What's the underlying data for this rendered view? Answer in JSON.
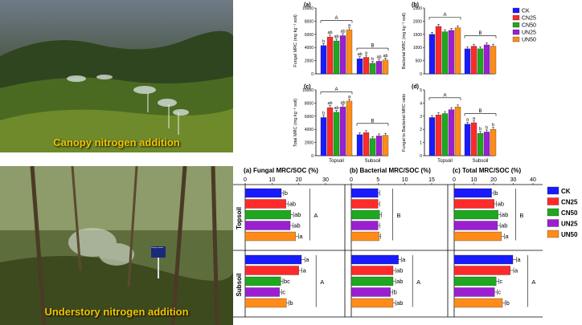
{
  "photos": {
    "top_caption": "Canopy nitrogen addition",
    "bottom_caption": "Understory nitrogen addition",
    "sign_text": "Nitrogen addition"
  },
  "legend_top": [
    "CK",
    "CN25",
    "CN50",
    "UN25",
    "UN50"
  ],
  "legend_bottom": [
    "CK",
    "CN25",
    "CN50",
    "UN25",
    "UN50"
  ],
  "colors": {
    "CK": "#1a1aff",
    "CN25": "#ff2a2a",
    "CN50": "#1fa81f",
    "UN25": "#9b1fd1",
    "UN50": "#ff8c1a"
  },
  "chart_data": [
    {
      "type": "bar",
      "panel": "(a)",
      "ylabel": "Fungal MRC (mg kg⁻¹ soil)",
      "yticks": [
        0,
        2000,
        4000,
        6000,
        8000,
        10000
      ],
      "ylim": [
        0,
        10000
      ],
      "categories": [
        "Topsoil",
        "Subsoil"
      ],
      "series": [
        {
          "name": "CK",
          "values": [
            4300,
            2300
          ]
        },
        {
          "name": "CN25",
          "values": [
            5600,
            2500
          ]
        },
        {
          "name": "CN50",
          "values": [
            5000,
            1600
          ]
        },
        {
          "name": "UN25",
          "values": [
            5800,
            1900
          ]
        },
        {
          "name": "UN50",
          "values": [
            6700,
            2100
          ]
        }
      ],
      "letters": [
        [
          "b",
          "ab",
          "ab",
          "ab",
          "a"
        ],
        [
          "ab",
          "a",
          "b",
          "ab",
          "ab"
        ]
      ],
      "group_letters": [
        "A",
        "B"
      ]
    },
    {
      "type": "bar",
      "panel": "(b)",
      "ylabel": "Bacterial MRC (mg kg⁻¹ soil)",
      "yticks": [
        0,
        500,
        1000,
        1500,
        2000,
        2500
      ],
      "ylim": [
        0,
        2500
      ],
      "categories": [
        "Topsoil",
        "Subsoil"
      ],
      "series": [
        {
          "name": "CK",
          "values": [
            1500,
            950
          ]
        },
        {
          "name": "CN25",
          "values": [
            1800,
            1050
          ]
        },
        {
          "name": "CN50",
          "values": [
            1600,
            950
          ]
        },
        {
          "name": "UN25",
          "values": [
            1650,
            1100
          ]
        },
        {
          "name": "UN50",
          "values": [
            1750,
            1050
          ]
        }
      ],
      "letters": [
        [
          "",
          "",
          "",
          "",
          ""
        ],
        [
          "",
          "",
          "",
          "",
          ""
        ]
      ],
      "group_letters": [
        "A",
        "B"
      ]
    },
    {
      "type": "bar",
      "panel": "(c)",
      "ylabel": "Total MRC (mg kg⁻¹ soil)",
      "yticks": [
        0,
        2000,
        4000,
        6000,
        8000,
        10000
      ],
      "ylim": [
        0,
        10000
      ],
      "categories": [
        "Topsoil",
        "Subsoil"
      ],
      "series": [
        {
          "name": "CK",
          "values": [
            5800,
            3200
          ]
        },
        {
          "name": "CN25",
          "values": [
            7300,
            3500
          ]
        },
        {
          "name": "CN50",
          "values": [
            6600,
            2600
          ]
        },
        {
          "name": "UN25",
          "values": [
            7400,
            3000
          ]
        },
        {
          "name": "UN50",
          "values": [
            8300,
            3100
          ]
        }
      ],
      "letters": [
        [
          "b",
          "ab",
          "ab",
          "ab",
          "a"
        ],
        [
          "",
          "",
          "",
          "",
          ""
        ]
      ],
      "group_letters": [
        "A",
        "B"
      ],
      "xticks": [
        "Topsoil",
        "Subsoil"
      ]
    },
    {
      "type": "bar",
      "panel": "(d)",
      "ylabel": "Fungal to Bacterial MRC ratio",
      "yticks": [
        0,
        1,
        2,
        3,
        4,
        5
      ],
      "ylim": [
        0,
        5
      ],
      "categories": [
        "Topsoil",
        "Subsoil"
      ],
      "series": [
        {
          "name": "CK",
          "values": [
            2.9,
            2.4
          ]
        },
        {
          "name": "CN25",
          "values": [
            3.1,
            2.5
          ]
        },
        {
          "name": "CN50",
          "values": [
            3.2,
            1.7
          ]
        },
        {
          "name": "UN25",
          "values": [
            3.5,
            1.8
          ]
        },
        {
          "name": "UN50",
          "values": [
            3.7,
            2.0
          ]
        }
      ],
      "letters": [
        [
          "",
          "",
          "",
          "",
          ""
        ],
        [
          "a",
          "a",
          "b",
          "b",
          "b"
        ]
      ],
      "group_letters": [
        "A",
        "B"
      ],
      "xticks": [
        "Topsoil",
        "Subsoil"
      ]
    },
    {
      "type": "hbar",
      "panel": "(a)",
      "title": "Fungal MRC/SOC (%)",
      "xticks": [
        0,
        10,
        20,
        30
      ],
      "xlim": [
        0,
        30
      ],
      "row_labels": [
        "Topsoil",
        "Subsoil"
      ],
      "series_names": [
        "CK",
        "CN25",
        "CN50",
        "UN25",
        "UN50"
      ],
      "topsoil": {
        "values": [
          13.5,
          15.2,
          17.0,
          16.8,
          18.8
        ],
        "letters": [
          "b",
          "ab",
          "ab",
          "ab",
          "a"
        ],
        "group": "A"
      },
      "subsoil": {
        "values": [
          21.0,
          20.0,
          13.3,
          12.8,
          15.4
        ],
        "letters": [
          "a",
          "a",
          "bc",
          "c",
          "b"
        ],
        "group": "A"
      }
    },
    {
      "type": "hbar",
      "panel": "(b)",
      "title": "Bacterial MRC/SOC (%)",
      "xticks": [
        0,
        5,
        10,
        15
      ],
      "xlim": [
        0,
        15
      ],
      "row_labels": [
        "Topsoil",
        "Subsoil"
      ],
      "series_names": [
        "CK",
        "CN25",
        "CN50",
        "UN25",
        "UN50"
      ],
      "topsoil": {
        "values": [
          5.0,
          5.0,
          5.3,
          5.0,
          5.2
        ],
        "letters": [
          "",
          "",
          "",
          "",
          ""
        ],
        "group": "B"
      },
      "subsoil": {
        "values": [
          8.8,
          7.8,
          7.8,
          7.3,
          7.8
        ],
        "letters": [
          "a",
          "ab",
          "ab",
          "b",
          "ab"
        ],
        "group": "A"
      }
    },
    {
      "type": "hbar",
      "panel": "(c)",
      "title": "Total MRC/SOC (%)",
      "xticks": [
        0,
        10,
        20,
        30,
        40
      ],
      "xlim": [
        0,
        40
      ],
      "row_labels": [
        "Topsoil",
        "Subsoil"
      ],
      "series_names": [
        "CK",
        "CN25",
        "CN50",
        "UN25",
        "UN50"
      ],
      "topsoil": {
        "values": [
          19.0,
          20.3,
          22.3,
          22.0,
          24.0
        ],
        "letters": [
          "b",
          "ab",
          "ab",
          "ab",
          "a"
        ],
        "group": "B"
      },
      "subsoil": {
        "values": [
          29.8,
          28.5,
          21.3,
          20.5,
          24.5
        ],
        "letters": [
          "a",
          "a",
          "c",
          "c",
          "b"
        ],
        "group": "A"
      }
    }
  ]
}
